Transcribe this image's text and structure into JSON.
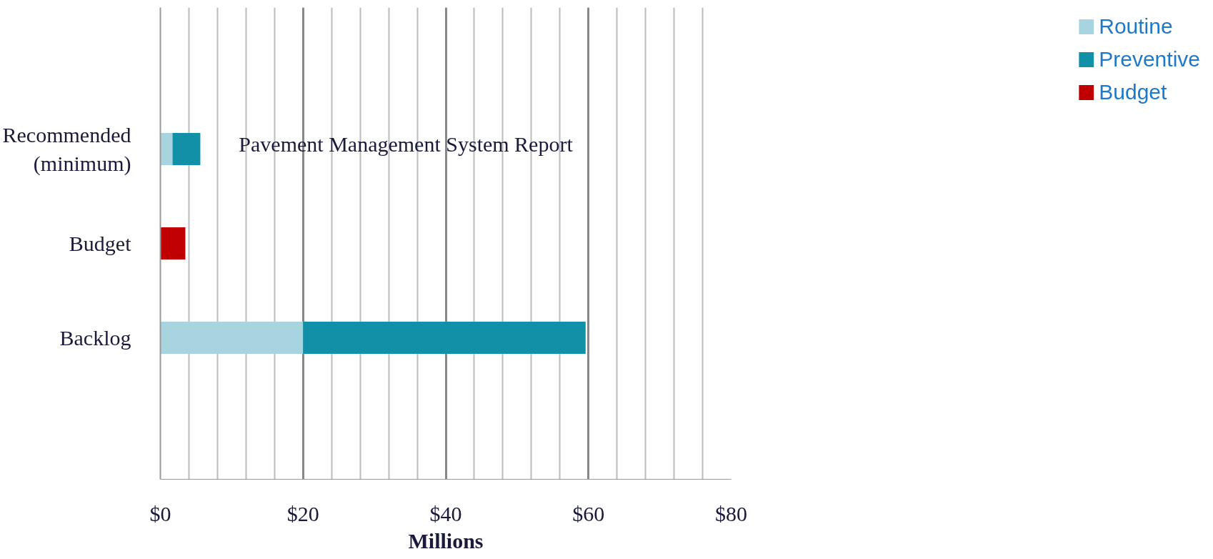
{
  "chart_data": {
    "type": "bar",
    "orientation": "horizontal",
    "stacked": true,
    "categories": [
      null,
      "Recommended (minimum)",
      "Budget",
      "Backlog",
      null
    ],
    "series": [
      {
        "name": "Routine",
        "color": "#a8d4e0",
        "values": [
          null,
          1.7,
          null,
          20,
          null
        ]
      },
      {
        "name": "Preventive",
        "color": "#1190a8",
        "values": [
          null,
          3.9,
          null,
          39.6,
          null
        ]
      },
      {
        "name": "Budget",
        "color": "#c00000",
        "values": [
          null,
          null,
          3.5,
          null,
          null
        ]
      }
    ],
    "xlabel": "Millions",
    "annotations": [
      "Pavement Management System Report"
    ],
    "xlim": [
      0,
      80
    ],
    "xticks": [
      {
        "value": 0,
        "label": "$0"
      },
      {
        "value": 4,
        "label": null
      },
      {
        "value": 8,
        "label": null
      },
      {
        "value": 12,
        "label": null
      },
      {
        "value": 16,
        "label": null
      },
      {
        "value": 20,
        "label": "$20"
      },
      {
        "value": 24,
        "label": null
      },
      {
        "value": 28,
        "label": null
      },
      {
        "value": 32,
        "label": null
      },
      {
        "value": 36,
        "label": null
      },
      {
        "value": 40,
        "label": "$40"
      },
      {
        "value": 44,
        "label": null
      },
      {
        "value": 48,
        "label": null
      },
      {
        "value": 52,
        "label": null
      },
      {
        "value": 56,
        "label": null
      },
      {
        "value": 60,
        "label": "$60"
      },
      {
        "value": 64,
        "label": null
      },
      {
        "value": 68,
        "label": null
      },
      {
        "value": 72,
        "label": null
      },
      {
        "value": 76,
        "label": null
      },
      {
        "value": 80,
        "label": "$80"
      }
    ],
    "grid": "x",
    "legend": "right"
  }
}
